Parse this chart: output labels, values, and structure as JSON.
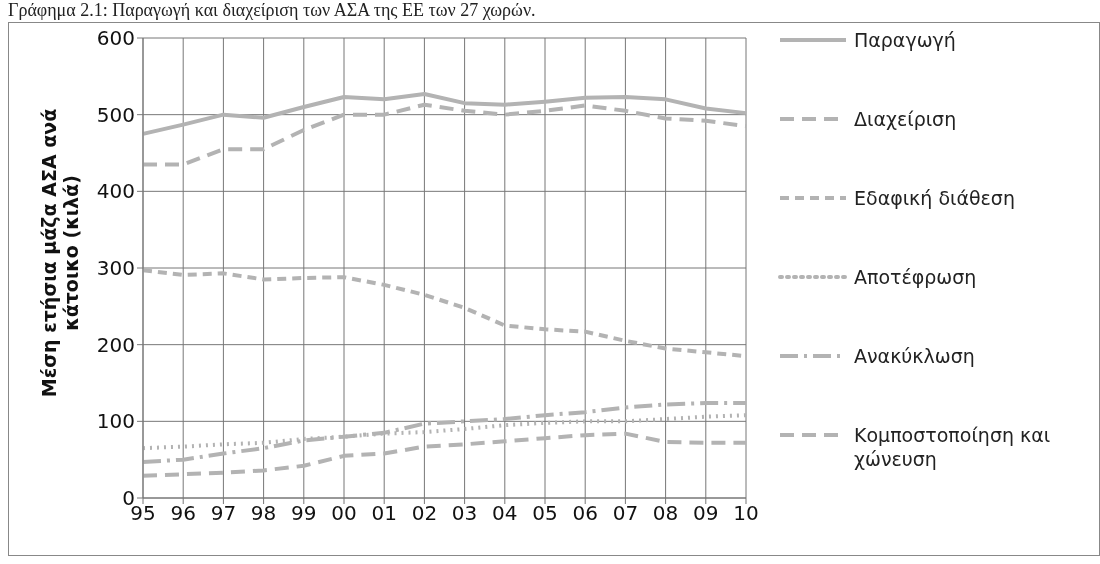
{
  "chart_data": {
    "type": "line",
    "title": "Γράφημα 2.1: Παραγωγή και διαχείριση των ΑΣΑ της ΕΕ των 27 χωρών.",
    "ylabel": "Μέση ετήσια μάζα ΑΣΑ ανά κάτοικο (κιλά)",
    "categories": [
      "95",
      "96",
      "97",
      "98",
      "99",
      "00",
      "01",
      "02",
      "03",
      "04",
      "05",
      "06",
      "07",
      "08",
      "09",
      "10"
    ],
    "ylim": [
      0,
      600
    ],
    "yticks": [
      0,
      100,
      200,
      300,
      400,
      500,
      600
    ],
    "grid": true,
    "legend": "right",
    "marker": "none",
    "series": [
      {
        "name": "Παραγωγή",
        "color": "#b3b3b3",
        "line_style": "solid",
        "values": [
          475,
          487,
          500,
          496,
          510,
          523,
          520,
          527,
          515,
          513,
          517,
          522,
          523,
          520,
          508,
          502
        ]
      },
      {
        "name": "Διαχείριση",
        "color": "#b3b3b3",
        "line_style": "dashed",
        "values": [
          435,
          435,
          455,
          455,
          480,
          500,
          500,
          513,
          505,
          500,
          505,
          512,
          505,
          495,
          492,
          485
        ]
      },
      {
        "name": "Εδαφική διάθεση",
        "color": "#b3b3b3",
        "line_style": "dashed",
        "values": [
          297,
          291,
          293,
          285,
          287,
          288,
          278,
          265,
          248,
          225,
          220,
          217,
          205,
          195,
          190,
          185
        ]
      },
      {
        "name": "Αποτέφρωση",
        "color": "#b3b3b3",
        "line_style": "dotted",
        "values": [
          65,
          67,
          70,
          72,
          77,
          80,
          84,
          86,
          90,
          95,
          98,
          100,
          100,
          103,
          106,
          108
        ]
      },
      {
        "name": "Ανακύκλωση",
        "color": "#b3b3b3",
        "line_style": "dashed",
        "values": [
          47,
          50,
          58,
          65,
          75,
          80,
          85,
          97,
          100,
          103,
          108,
          112,
          118,
          122,
          124,
          124
        ]
      },
      {
        "name": "Κομποστοποίηση και χώνευση",
        "color": "#b3b3b3",
        "line_style": "dashed",
        "values": [
          29,
          31,
          33,
          36,
          42,
          55,
          58,
          67,
          70,
          74,
          78,
          82,
          84,
          73,
          72,
          72
        ]
      }
    ]
  }
}
